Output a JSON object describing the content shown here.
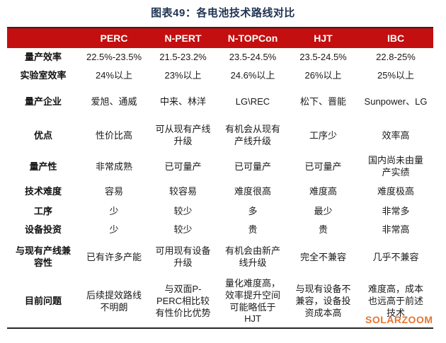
{
  "title": "图表49：各电池技术路线对比",
  "watermark": "SOLARZOOM",
  "colors": {
    "header_bg": "#C30F0F",
    "header_text": "#FFFFFF",
    "title_text": "#1F3352",
    "body_text": "#1A1A1A",
    "border": "#262626",
    "watermark": "#E87430"
  },
  "table": {
    "columns": [
      "",
      "PERC",
      "N-PERT",
      "N-TOPCon",
      "HJT",
      "IBC"
    ],
    "rows": [
      {
        "label": "量产效率",
        "cells": [
          "22.5%-23.5%",
          "21.5-23.2%",
          "23.5-24.5%",
          "23.5-24.5%",
          "22.8-25%"
        ]
      },
      {
        "label": "实验室效率",
        "cells": [
          "24%以上",
          "23%以上",
          "24.6%以上",
          "26%以上",
          "25%以上"
        ]
      },
      {
        "label": "量产企业",
        "cells": [
          "爱旭、通威",
          "中来、林洋",
          "LG\\REC",
          "松下、晋能",
          "Sunpower、LG"
        ]
      },
      {
        "label": "优点",
        "cells": [
          "性价比高",
          "可从现有产线升级",
          "有机会从现有产线升级",
          "工序少",
          "效率高"
        ]
      },
      {
        "label": "量产性",
        "cells": [
          "非常成熟",
          "已可量产",
          "已可量产",
          "已可量产",
          "国内尚未由量产实绩"
        ]
      },
      {
        "label": "技术难度",
        "cells": [
          "容易",
          "较容易",
          "难度很高",
          "难度高",
          "难度极高"
        ]
      },
      {
        "label": "工序",
        "cells": [
          "少",
          "较少",
          "多",
          "最少",
          "非常多"
        ]
      },
      {
        "label": "设备投资",
        "cells": [
          "少",
          "较少",
          "贵",
          "贵",
          "非常高"
        ]
      },
      {
        "label": "与现有产线兼容性",
        "cells": [
          "已有许多产能",
          "可用现有设备升级",
          "有机会由新产线升级",
          "完全不兼容",
          "几乎不兼容"
        ]
      },
      {
        "label": "目前问题",
        "cells": [
          "后续提效路线不明朗",
          "与双面P-PERC相比较有性价比优势",
          "量化难度高，效率提升空间可能略低于HJT",
          "与现有设备不兼容，设备投资成本高",
          "难度高，成本也远高于前述技术"
        ]
      }
    ]
  }
}
